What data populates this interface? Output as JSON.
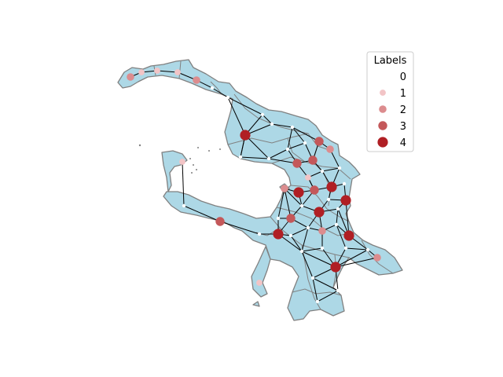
{
  "legend": {
    "title": "Labels",
    "items": [
      {
        "label": "0",
        "color": "#ffffff"
      },
      {
        "label": "1",
        "color": "#f2c4c6"
      },
      {
        "label": "2",
        "color": "#dc8c8e"
      },
      {
        "label": "3",
        "color": "#c4585a"
      },
      {
        "label": "4",
        "color": "#b01f24"
      }
    ]
  },
  "map": {
    "land_fill": "#add8e6",
    "border_color": "#808080",
    "edge_color": "#000000"
  }
}
